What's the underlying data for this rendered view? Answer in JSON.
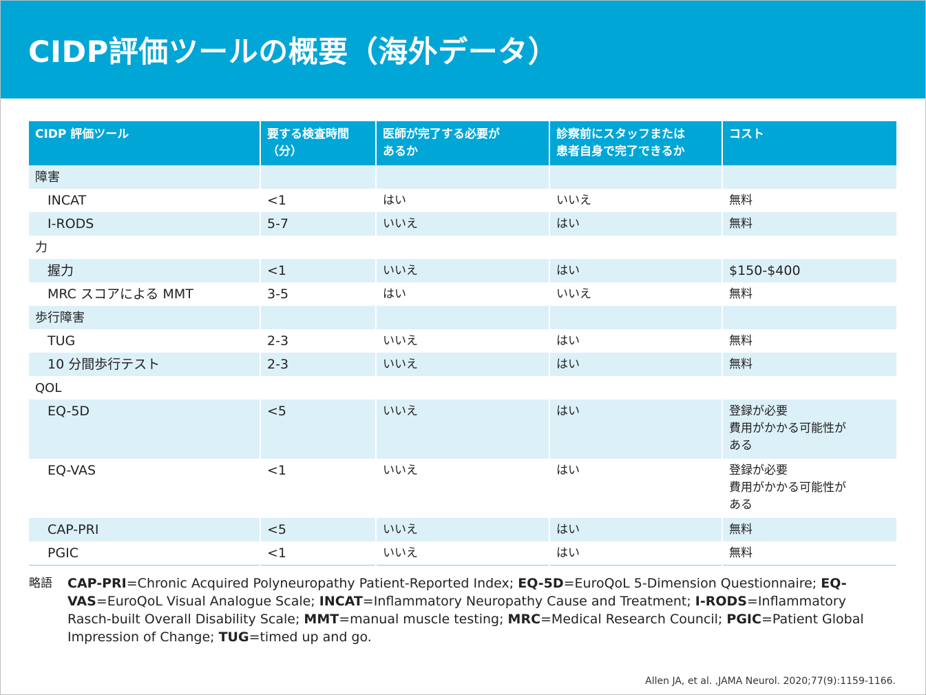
{
  "title": "CIDP評価ツールの概要（海外データ）",
  "header": {
    "col1": "CIDP 評価ツール",
    "col2": "要する検査時間\n（分）",
    "col3": "医師が完了する必要が\nあるか",
    "col4": "診察前にスタッフまたは\n患者自身で完了できるか",
    "col5": "コスト"
  },
  "rows": [
    {
      "tool": "障害",
      "time": "",
      "doctor": "",
      "self": "",
      "cost": ""
    },
    {
      "tool": "INCAT",
      "time": "<1",
      "doctor": "はい",
      "self": "いいえ",
      "cost": "無料"
    },
    {
      "tool": "I-RODS",
      "time": "5-7",
      "doctor": "いいえ",
      "self": "はい",
      "cost": "無料"
    },
    {
      "tool": "力",
      "time": "",
      "doctor": "",
      "self": "",
      "cost": ""
    },
    {
      "tool": "握力",
      "time": "<1",
      "doctor": "いいえ",
      "self": "はい",
      "cost": "$150-$400"
    },
    {
      "tool": "MRC スコアによる MMT",
      "time": "3-5",
      "doctor": "はい",
      "self": "いいえ",
      "cost": "無料"
    },
    {
      "tool": "歩行障害",
      "time": "",
      "doctor": "",
      "self": "",
      "cost": ""
    },
    {
      "tool": "TUG",
      "time": "2-3",
      "doctor": "いいえ",
      "self": "はい",
      "cost": "無料"
    },
    {
      "tool": "10 分間歩行テスト",
      "time": "2-3",
      "doctor": "いいえ",
      "self": "はい",
      "cost": "無料"
    },
    {
      "tool": "QOL",
      "time": "",
      "doctor": "",
      "self": "",
      "cost": ""
    },
    {
      "tool": "EQ-5D",
      "time": "<5",
      "doctor": "いいえ",
      "self": "はい",
      "cost": "登録が必要\n費用がかかる可能性が\nある"
    },
    {
      "tool": "EQ-VAS",
      "time": "<1",
      "doctor": "いいえ",
      "self": "はい",
      "cost": "登録が必要\n費用がかかる可能性が\nある"
    },
    {
      "tool": "CAP-PRI",
      "time": "<5",
      "doctor": "いいえ",
      "self": "はい",
      "cost": "無料"
    },
    {
      "tool": "PGIC",
      "time": "<1",
      "doctor": "いいえ",
      "self": "はい",
      "cost": "無料"
    }
  ],
  "abbreviations": {
    "label": "略語",
    "items": [
      {
        "term": "CAP-PRI",
        "definition": "=Chronic Acquired Polyneuropathy Patient-Reported Index; "
      },
      {
        "term": "EQ-5D",
        "definition": "=EuroQoL 5-Dimension Questionnaire; "
      },
      {
        "term": "EQ-VAS",
        "definition": "=EuroQoL Visual Analogue Scale; "
      },
      {
        "term": "INCAT",
        "definition": "=Inflammatory Neuropathy Cause and Treatment; "
      },
      {
        "term": "I-RODS",
        "definition": "=Inflammatory Rasch-built Overall Disability Scale; "
      },
      {
        "term": "MMT",
        "definition": "=manual muscle testing; "
      },
      {
        "term": "MRC",
        "definition": "=Medical Research Council; "
      },
      {
        "term": "PGIC",
        "definition": "=Patient Global Impression of Change; "
      },
      {
        "term": "TUG",
        "definition": "=timed up and go."
      }
    ]
  },
  "citation": "Allen JA, et al. ,JAMA Neurol. 2020;77(9):1159-1166.",
  "colors": {
    "accent": "#00a6d6",
    "row_shade": "#dcf0f8",
    "header_text": "#ffffff"
  }
}
